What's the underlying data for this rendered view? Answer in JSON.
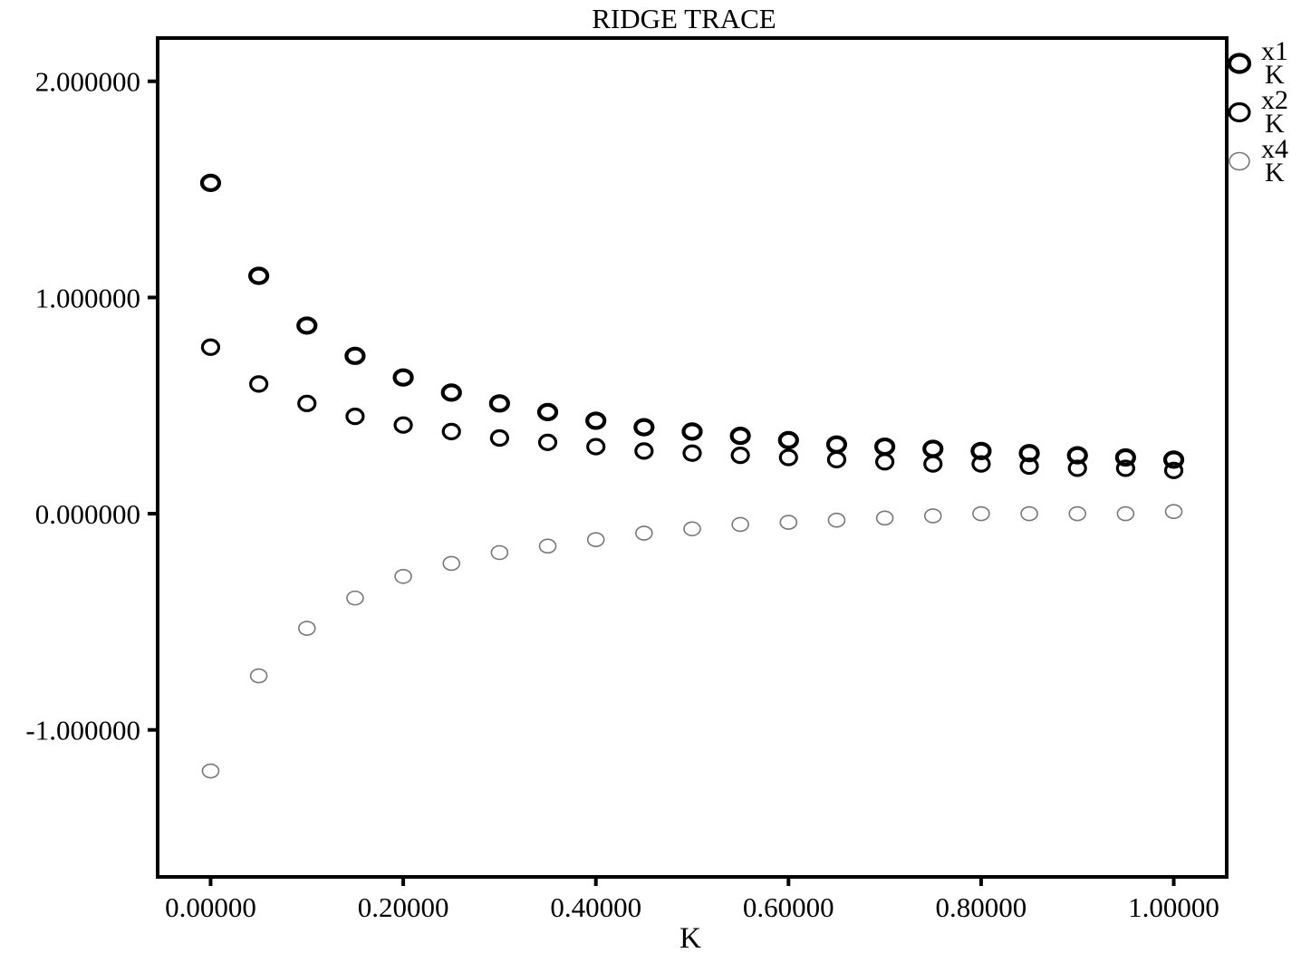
{
  "chart_data": {
    "type": "scatter",
    "title": "RIDGE  TRACE",
    "xlabel": "K",
    "ylabel": "",
    "xlim": [
      -0.055,
      1.055
    ],
    "ylim": [
      -1.68,
      2.2
    ],
    "x_ticks": [
      0.0,
      0.2,
      0.4,
      0.6,
      0.8,
      1.0
    ],
    "x_tick_labels": [
      "0.00000",
      "0.20000",
      "0.40000",
      "0.60000",
      "0.80000",
      "1.00000"
    ],
    "y_ticks": [
      2.0,
      1.0,
      0.0,
      -1.0
    ],
    "y_tick_labels": [
      "2.000000",
      "1.000000",
      "0.000000",
      "-1.000000"
    ],
    "grid": false,
    "legend_position": "right-top, outside plot",
    "x": [
      0.0,
      0.05,
      0.1,
      0.15,
      0.2,
      0.25,
      0.3,
      0.35,
      0.4,
      0.45,
      0.5,
      0.55,
      0.6,
      0.65,
      0.7,
      0.75,
      0.8,
      0.85,
      0.9,
      0.95,
      1.0
    ],
    "series": [
      {
        "name": "x1",
        "legend_sub": "K",
        "marker": "circle-bold",
        "color": "#000000",
        "values": [
          1.53,
          1.1,
          0.87,
          0.73,
          0.63,
          0.56,
          0.51,
          0.47,
          0.43,
          0.4,
          0.38,
          0.36,
          0.34,
          0.32,
          0.31,
          0.3,
          0.29,
          0.28,
          0.27,
          0.26,
          0.25
        ]
      },
      {
        "name": "x2",
        "legend_sub": "K",
        "marker": "circle",
        "color": "#000000",
        "values": [
          0.77,
          0.6,
          0.51,
          0.45,
          0.41,
          0.38,
          0.35,
          0.33,
          0.31,
          0.29,
          0.28,
          0.27,
          0.26,
          0.25,
          0.24,
          0.23,
          0.23,
          0.22,
          0.21,
          0.21,
          0.2
        ]
      },
      {
        "name": "x4",
        "legend_sub": "K",
        "marker": "circle-light",
        "color": "#777777",
        "values": [
          -1.19,
          -0.75,
          -0.53,
          -0.39,
          -0.29,
          -0.23,
          -0.18,
          -0.15,
          -0.12,
          -0.09,
          -0.07,
          -0.05,
          -0.04,
          -0.03,
          -0.02,
          -0.01,
          0.0,
          0.0,
          0.0,
          0.0,
          0.01
        ]
      }
    ]
  }
}
